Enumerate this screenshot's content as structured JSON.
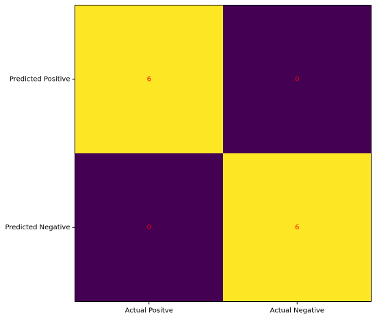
{
  "chart_data": {
    "type": "heatmap",
    "title": "",
    "xlabel": "",
    "ylabel": "",
    "x_categories": [
      "Actual Positve",
      "Actual Negative"
    ],
    "y_categories": [
      "Predicted Positive",
      "Predicted Negative"
    ],
    "values": [
      [
        6,
        0
      ],
      [
        0,
        6
      ]
    ],
    "value_range": [
      0,
      6
    ],
    "colormap": "viridis",
    "colors": {
      "low": "#440154",
      "high": "#fde725",
      "annotation": "#ff0000",
      "frame": "#000000"
    },
    "grid": false,
    "legend": "none"
  }
}
